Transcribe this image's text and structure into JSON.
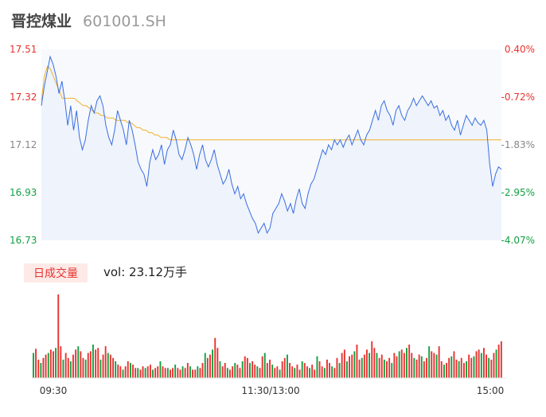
{
  "header": {
    "name": "晋控煤业",
    "code": "601001.SH"
  },
  "volume_panel": {
    "tag": "日成交量",
    "label": "vol: 23.12万手"
  },
  "colors": {
    "up": "#e8322f",
    "down": "#12a042",
    "price": "#3a6ee0",
    "avg": "#f2b12b"
  },
  "chart_data": [
    {
      "type": "line",
      "left_ticks": [
        "17.51",
        "17.32",
        "17.12",
        "16.93",
        "16.73"
      ],
      "right_ticks": [
        "0.40%",
        "-0.72%",
        "-1.83%",
        "-2.95%",
        "-4.07%"
      ],
      "ylim": [
        16.73,
        17.51
      ],
      "xticks": [
        "09:30",
        "11:30/13:00",
        "15:00"
      ],
      "series": [
        {
          "values": [
            17.28,
            17.36,
            17.42,
            17.48,
            17.45,
            17.4,
            17.33,
            17.38,
            17.3,
            17.2,
            17.28,
            17.18,
            17.26,
            17.15,
            17.1,
            17.14,
            17.22,
            17.28,
            17.25,
            17.3,
            17.32,
            17.28,
            17.2,
            17.15,
            17.12,
            17.18,
            17.26,
            17.22,
            17.18,
            17.12,
            17.22,
            17.18,
            17.12,
            17.05,
            17.02,
            17.0,
            16.95,
            17.05,
            17.1,
            17.06,
            17.08,
            17.12,
            17.04,
            17.1,
            17.12,
            17.18,
            17.14,
            17.08,
            17.06,
            17.1,
            17.15,
            17.12,
            17.08,
            17.02,
            17.08,
            17.12,
            17.06,
            17.03,
            17.06,
            17.1,
            17.04,
            17.0,
            16.96,
            16.98,
            17.02,
            16.96,
            16.92,
            16.95,
            16.9,
            16.92,
            16.88,
            16.85,
            16.82,
            16.8,
            16.76,
            16.78,
            16.8,
            16.76,
            16.78,
            16.84,
            16.86,
            16.88,
            16.92,
            16.89,
            16.85,
            16.88,
            16.84,
            16.9,
            16.94,
            16.88,
            16.86,
            16.92,
            16.96,
            16.98,
            17.02,
            17.06,
            17.1,
            17.08,
            17.12,
            17.1,
            17.14,
            17.12,
            17.14,
            17.11,
            17.14,
            17.16,
            17.12,
            17.15,
            17.18,
            17.14,
            17.12,
            17.16,
            17.18,
            17.22,
            17.26,
            17.22,
            17.28,
            17.3,
            17.26,
            17.24,
            17.2,
            17.26,
            17.28,
            17.24,
            17.22,
            17.26,
            17.28,
            17.31,
            17.28,
            17.3,
            17.32,
            17.3,
            17.28,
            17.3,
            17.27,
            17.28,
            17.24,
            17.26,
            17.22,
            17.24,
            17.2,
            17.18,
            17.22,
            17.16,
            17.2,
            17.24,
            17.22,
            17.2,
            17.23,
            17.21,
            17.2,
            17.22,
            17.18,
            17.04,
            16.95,
            17.0,
            17.03,
            17.02
          ],
          "name": ""
        },
        {
          "values": [
            17.3,
            17.4,
            17.44,
            17.43,
            17.4,
            17.37,
            17.34,
            17.31,
            17.31,
            17.31,
            17.31,
            17.31,
            17.3,
            17.29,
            17.28,
            17.28,
            17.27,
            17.26,
            17.25,
            17.25,
            17.24,
            17.24,
            17.23,
            17.23,
            17.23,
            17.22,
            17.22,
            17.22,
            17.22,
            17.21,
            17.21,
            17.2,
            17.19,
            17.19,
            17.18,
            17.18,
            17.17,
            17.17,
            17.16,
            17.16,
            17.15,
            17.15,
            17.15,
            17.14,
            17.14,
            17.14,
            17.14,
            17.14,
            17.14,
            17.14,
            17.14,
            17.14,
            17.14,
            17.14,
            17.14,
            17.14,
            17.14,
            17.14,
            17.14,
            17.14,
            17.14,
            17.14,
            17.14,
            17.14,
            17.14,
            17.14,
            17.14,
            17.14,
            17.14,
            17.14,
            17.14,
            17.14,
            17.14,
            17.14,
            17.14,
            17.14,
            17.14,
            17.14,
            17.14,
            17.14,
            17.14,
            17.14,
            17.14,
            17.14,
            17.14,
            17.14,
            17.14,
            17.14,
            17.14,
            17.14,
            17.14,
            17.14,
            17.14,
            17.14,
            17.14,
            17.14,
            17.14,
            17.14,
            17.14,
            17.14,
            17.14,
            17.14,
            17.14,
            17.14,
            17.14,
            17.14,
            17.14,
            17.14,
            17.14,
            17.14,
            17.14,
            17.14,
            17.14,
            17.14,
            17.14,
            17.14,
            17.14,
            17.14,
            17.14,
            17.14,
            17.14,
            17.14,
            17.14,
            17.14,
            17.14,
            17.14,
            17.14,
            17.14,
            17.14,
            17.14,
            17.14,
            17.14,
            17.14,
            17.14,
            17.14,
            17.14,
            17.14,
            17.14,
            17.14,
            17.14,
            17.14,
            17.14,
            17.14,
            17.14,
            17.14,
            17.14,
            17.14,
            17.14,
            17.14,
            17.14,
            17.14,
            17.14,
            17.14,
            17.14,
            17.14
          ],
          "name": ""
        }
      ]
    },
    {
      "type": "bar",
      "values": [
        30,
        35,
        22,
        18,
        24,
        28,
        30,
        34,
        32,
        36,
        100,
        38,
        22,
        30,
        24,
        20,
        28,
        34,
        38,
        32,
        24,
        22,
        30,
        32,
        40,
        34,
        36,
        22,
        28,
        38,
        30,
        28,
        24,
        20,
        16,
        14,
        10,
        14,
        20,
        18,
        16,
        12,
        12,
        10,
        14,
        12,
        14,
        16,
        10,
        12,
        14,
        20,
        14,
        12,
        12,
        10,
        12,
        16,
        12,
        10,
        14,
        12,
        18,
        14,
        10,
        10,
        14,
        12,
        18,
        30,
        24,
        28,
        34,
        48,
        36,
        20,
        14,
        18,
        12,
        10,
        14,
        18,
        16,
        12,
        20,
        26,
        24,
        18,
        20,
        16,
        14,
        12,
        26,
        30,
        18,
        22,
        16,
        12,
        14,
        10,
        20,
        24,
        28,
        18,
        14,
        12,
        16,
        10,
        20,
        18,
        14,
        12,
        16,
        10,
        26,
        20,
        14,
        12,
        22,
        18,
        14,
        12,
        24,
        18,
        30,
        34,
        20,
        26,
        28,
        32,
        40,
        22,
        24,
        28,
        34,
        30,
        44,
        36,
        30,
        24,
        28,
        22,
        20,
        24,
        18,
        30,
        26,
        32,
        34,
        30,
        36,
        40,
        30,
        24,
        22,
        28,
        26,
        20,
        24,
        38,
        32,
        30,
        28,
        38,
        20,
        16,
        18,
        24,
        26,
        32,
        22,
        20,
        24,
        18,
        20,
        28,
        24,
        26,
        32,
        34,
        30,
        36,
        28,
        24,
        22,
        30,
        34,
        40,
        44
      ],
      "ylim": [
        0,
        100
      ]
    }
  ]
}
